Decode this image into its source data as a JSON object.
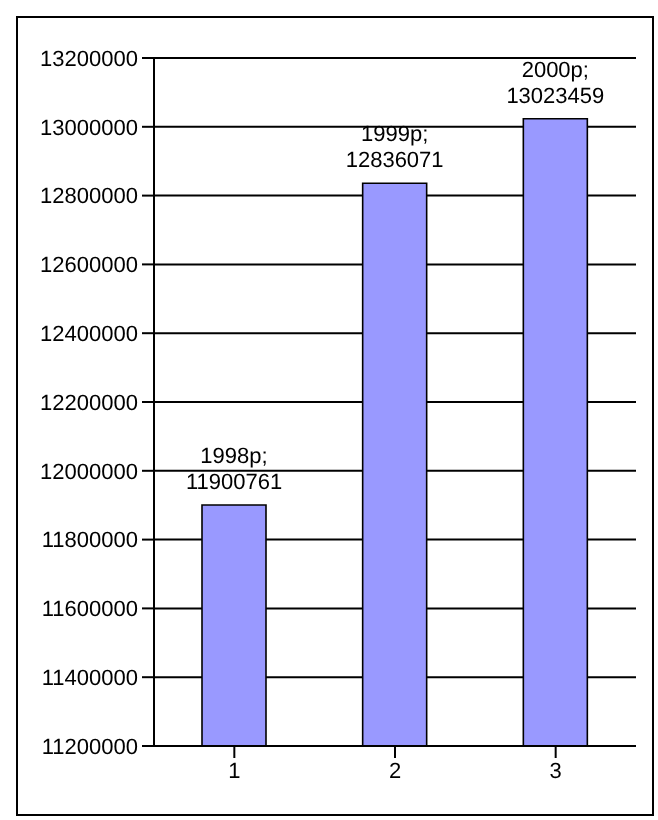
{
  "chart_data": {
    "type": "bar",
    "categories": [
      "1",
      "2",
      "3"
    ],
    "values": [
      11900761,
      12836071,
      13023459
    ],
    "color": "#9999ff",
    "value_labels": [
      "1998р; 11900761",
      "1999р; 12836071",
      "2000р; 13023459"
    ],
    "ylim": [
      11200000,
      13200000
    ],
    "yticks": [
      11200000,
      11400000,
      11600000,
      11800000,
      12000000,
      12200000,
      12400000,
      12600000,
      12800000,
      13000000,
      13200000
    ],
    "grid": "y",
    "legend": false
  }
}
